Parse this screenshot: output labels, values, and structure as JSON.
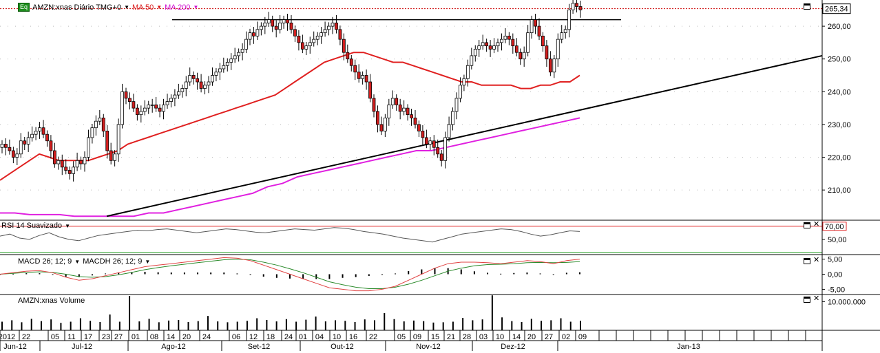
{
  "main_pane": {
    "symbol_label": "AMZN:xnas Diário TMG+0",
    "eq_badge": "Eq",
    "ma50_label": "MA 50",
    "ma200_label": "MA 200",
    "last_price": "265,34",
    "y_ticks": [
      "260,00",
      "250,00",
      "240,00",
      "230,00",
      "220,00",
      "210,00"
    ]
  },
  "rsi_pane": {
    "label": "RSI 14 Suavizado",
    "y_ticks": [
      "70,00",
      "50,00"
    ]
  },
  "macd_pane": {
    "macd_label": "MACD 26; 12; 9",
    "macdh_label": "MACDH 26; 12; 9",
    "y_ticks": [
      "5,00",
      "0,00",
      "-5,00"
    ]
  },
  "volume_pane": {
    "label": "AMZN:xnas Volume",
    "y_ticks": [
      "10.000.000"
    ]
  },
  "x_axis": {
    "day_ticks": [
      "2012",
      "22",
      "05",
      "11",
      "17",
      "23",
      "27",
      "01",
      "08",
      "14",
      "20",
      "24",
      "06",
      "12",
      "18",
      "24",
      "01",
      "04",
      "10",
      "16",
      "22",
      "05",
      "09",
      "15",
      "21",
      "28",
      "03",
      "10",
      "14",
      "20",
      "27",
      "02",
      "09"
    ],
    "month_labels": [
      "Jun-12",
      "Jul-12",
      "Ago-12",
      "Set-12",
      "Out-12",
      "Nov-12",
      "Dez-12",
      "Jan-13"
    ]
  },
  "colors": {
    "up_candle": "#ffffff",
    "down_candle": "#d21e1e",
    "ma50": "#e02020",
    "ma200": "#e020e0",
    "trendline": "#000000",
    "rsi_line": "#555555",
    "rsi_upper": "#e02020",
    "rsi_lower": "#1a9a1a",
    "macd_line": "#e04040",
    "signal_line": "#2a8a2a",
    "price_level": "#cc0000"
  },
  "chart_data": {
    "type": "candlestick",
    "title": "AMZN:xnas Diário TMG+0",
    "ylim": [
      201,
      268
    ],
    "y_axis_ticks": [
      210,
      220,
      230,
      240,
      250,
      260
    ],
    "last_value": 265.34,
    "candle_closes": [
      224,
      223,
      222,
      220,
      221,
      225,
      224,
      226,
      227,
      228,
      229,
      227,
      225,
      222,
      218,
      219,
      217,
      216,
      215,
      217,
      219,
      218,
      220,
      226,
      229,
      231,
      232,
      228,
      222,
      219,
      221,
      230,
      240,
      238,
      237,
      235,
      233,
      234,
      235,
      236,
      236,
      235,
      234,
      236,
      237,
      238,
      239,
      240,
      241,
      243,
      245,
      244,
      243,
      241,
      242,
      243,
      245,
      246,
      247,
      248,
      249,
      250,
      251,
      252,
      253,
      256,
      258,
      257,
      259,
      260,
      261,
      262,
      260,
      259,
      261,
      262,
      261,
      259,
      257,
      255,
      253,
      254,
      255,
      256,
      257,
      258,
      259,
      260,
      261,
      259,
      256,
      252,
      250,
      248,
      246,
      244,
      245,
      243,
      238,
      234,
      230,
      228,
      232,
      236,
      238,
      236,
      234,
      235,
      233,
      232,
      230,
      228,
      226,
      224,
      225,
      223,
      221,
      219,
      226,
      230,
      234,
      238,
      242,
      244,
      248,
      251,
      253,
      254,
      255,
      254,
      253,
      254,
      255,
      256,
      257,
      256,
      254,
      252,
      250,
      252,
      258,
      262,
      260,
      257,
      254,
      250,
      246,
      250,
      256,
      258,
      259,
      265,
      267,
      266,
      265
    ],
    "ma50": [
      213,
      215,
      217,
      219,
      221,
      220,
      219,
      219,
      219,
      219,
      220,
      221,
      222,
      224,
      225,
      226,
      227,
      228,
      229,
      230,
      231,
      232,
      233,
      234,
      235,
      236,
      237,
      238,
      239,
      241,
      243,
      245,
      247,
      249,
      250,
      251,
      252,
      252,
      251,
      250,
      249,
      249,
      248,
      247,
      246,
      245,
      244,
      243,
      243,
      242,
      242,
      242,
      242,
      241,
      241,
      242,
      242,
      243,
      243,
      245
    ],
    "ma200": [
      203,
      203,
      202.5,
      202.5,
      202.5,
      202,
      202,
      202,
      202,
      202,
      203,
      203,
      204,
      205,
      206,
      207,
      208,
      209,
      211,
      212,
      214,
      215,
      216,
      217,
      218,
      219,
      220,
      221,
      222,
      222,
      223,
      224,
      225,
      226,
      227,
      228,
      229,
      230,
      231,
      232
    ],
    "trendline": {
      "start": 202,
      "end": 251
    },
    "resistance_level": 262,
    "price_level": 265.34,
    "rsi": {
      "ylim": [
        30,
        75
      ],
      "overbought": 70,
      "oversold": 30,
      "values": [
        55,
        58,
        52,
        50,
        56,
        60,
        54,
        50,
        48,
        52,
        56,
        58,
        60,
        62,
        64,
        63,
        65,
        66,
        64,
        62,
        60,
        62,
        64,
        66,
        65,
        63,
        61,
        60,
        62,
        64,
        66,
        65,
        64,
        66,
        68,
        67,
        65,
        62,
        60,
        58,
        55,
        52,
        50,
        48,
        46,
        50,
        54,
        58,
        60,
        62,
        64,
        66,
        65,
        62,
        58,
        55,
        57,
        60,
        63,
        62
      ]
    },
    "macd": {
      "ylim": [
        -6.5,
        6.5
      ],
      "macd": [
        0,
        0.5,
        1,
        1.2,
        0.5,
        -1,
        -2,
        -1.5,
        -0.5,
        0.5,
        1.5,
        2.5,
        3,
        3.5,
        4,
        4.5,
        5,
        5.5,
        5.3,
        4.5,
        3,
        1.5,
        0,
        -1.5,
        -3,
        -4.5,
        -5,
        -5.5,
        -5.5,
        -5,
        -4,
        -2,
        0,
        2,
        3.5,
        4,
        4,
        3.8,
        3.5,
        4,
        4.5,
        4.2,
        3.5,
        4.5,
        5
      ],
      "signal": [
        0,
        0.3,
        0.6,
        0.8,
        0.6,
        0,
        -0.8,
        -1,
        -0.8,
        -0.2,
        0.6,
        1.5,
        2.2,
        2.8,
        3.3,
        3.8,
        4.3,
        4.8,
        5,
        4.8,
        4,
        3,
        1.8,
        0.5,
        -1,
        -2.5,
        -3.5,
        -4.3,
        -4.8,
        -4.8,
        -4.3,
        -3.3,
        -2,
        -0.5,
        1,
        2,
        2.8,
        3.2,
        3.3,
        3.5,
        3.8,
        3.9,
        3.8,
        3.9,
        4.2
      ]
    },
    "volume": {
      "ylim": [
        0,
        12000000
      ],
      "tick": 10000000,
      "values": [
        3000000,
        3500000,
        2800000,
        4000000,
        3200000,
        3800000,
        2600000,
        3000000,
        4200000,
        3300000,
        2900000,
        5500000,
        3000000,
        12000000,
        3100000,
        4000000,
        2800000,
        3400000,
        3600000,
        2900000,
        3200000,
        5000000,
        3100000,
        2800000,
        3000000,
        3300000,
        4200000,
        3600000,
        3100000,
        3900000,
        3000000,
        3700000,
        4800000,
        3100000,
        3500000,
        3300000,
        2900000,
        3800000,
        3500000,
        6000000,
        3900000,
        3100000,
        3400000,
        3200000,
        2700000,
        2800000,
        3000000,
        4300000,
        3500000,
        3800000,
        12200000,
        4500000,
        3200000,
        2900000,
        4000000,
        3300000,
        3500000,
        4200000,
        3000000,
        3300000
      ]
    }
  }
}
